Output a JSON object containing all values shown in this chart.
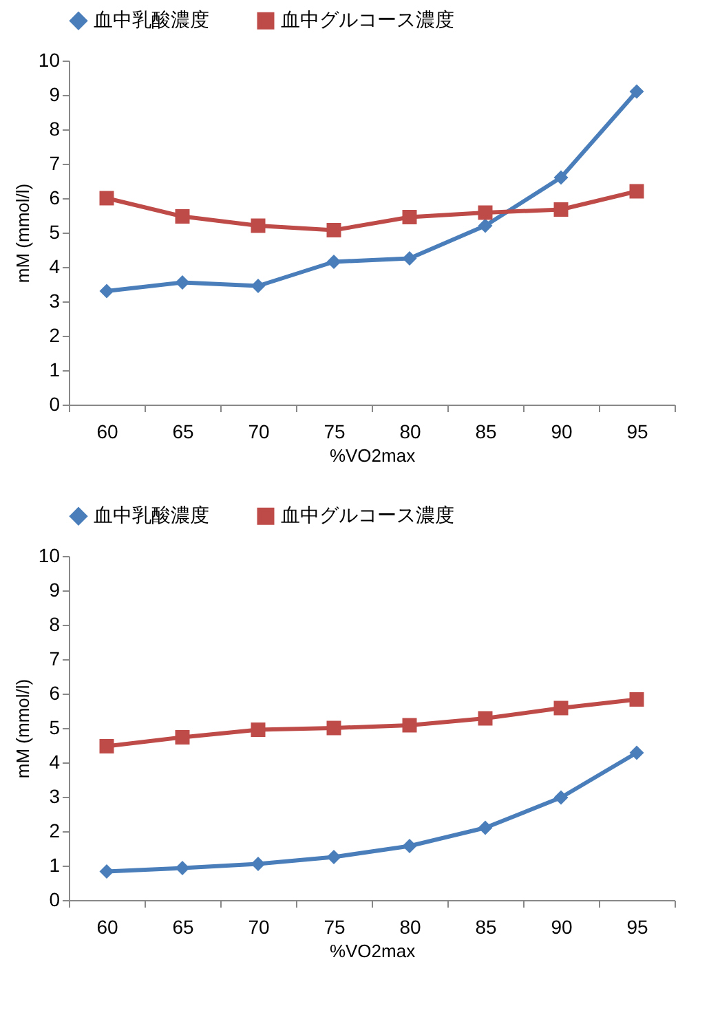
{
  "chart_data": [
    {
      "type": "line",
      "xlabel": "%VO2max",
      "ylabel": "mM (mmol/l)",
      "categories": [
        "60",
        "65",
        "70",
        "75",
        "80",
        "85",
        "90",
        "95"
      ],
      "ylim": [
        0,
        10
      ],
      "yticks": [
        0,
        1,
        2,
        3,
        4,
        5,
        6,
        7,
        8,
        9,
        10
      ],
      "grid": false,
      "legend": "top",
      "line_style": "solid",
      "series": [
        {
          "name": "血中乳酸濃度",
          "color": "#4a7ebb",
          "marker": "diamond",
          "values": [
            3.3,
            3.55,
            3.45,
            4.15,
            4.25,
            5.2,
            6.6,
            9.1
          ]
        },
        {
          "name": "血中グルコース濃度",
          "color": "#be4b48",
          "marker": "square",
          "values": [
            6.0,
            5.47,
            5.2,
            5.07,
            5.45,
            5.58,
            5.67,
            6.2
          ]
        }
      ]
    },
    {
      "type": "line",
      "xlabel": "%VO2max",
      "ylabel": "mM (mmol/l)",
      "categories": [
        "60",
        "65",
        "70",
        "75",
        "80",
        "85",
        "90",
        "95"
      ],
      "ylim": [
        0,
        10
      ],
      "yticks": [
        0,
        1,
        2,
        3,
        4,
        5,
        6,
        7,
        8,
        9,
        10
      ],
      "grid": false,
      "legend": "top",
      "line_style": "solid",
      "series": [
        {
          "name": "血中乳酸濃度",
          "color": "#4a7ebb",
          "marker": "diamond",
          "values": [
            0.83,
            0.93,
            1.05,
            1.25,
            1.57,
            2.1,
            2.98,
            4.28
          ]
        },
        {
          "name": "血中グルコース濃度",
          "color": "#be4b48",
          "marker": "square",
          "values": [
            4.47,
            4.73,
            4.95,
            5.0,
            5.08,
            5.28,
            5.58,
            5.83
          ]
        }
      ]
    }
  ]
}
